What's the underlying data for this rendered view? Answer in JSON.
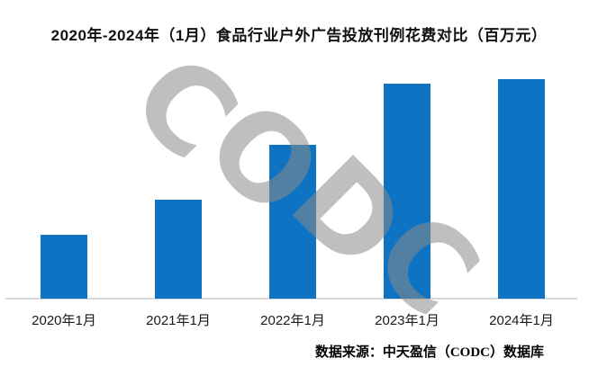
{
  "title": "2020年-2024年（1月）食品行业户外广告投放刊例花费对比（百万元）",
  "source_note": "数据来源：中天盈信（CODC）数据库",
  "watermark": {
    "text": "CODC"
  },
  "colors": {
    "bar": "#0d73c2",
    "axis_line": "#d9d9d9",
    "watermark": "#8a8a8a",
    "label_text": "#1a1a1a"
  },
  "chart_data": {
    "type": "bar",
    "title": "2020年-2024年（1月）食品行业户外广告投放刊例花费对比（百万元）",
    "categories": [
      "2020年1月",
      "2021年1月",
      "2022年1月",
      "2023年1月",
      "2024年1月"
    ],
    "values": [
      29,
      45,
      70,
      98,
      100
    ],
    "value_scale": "relative index, 2024年1月 = 100 (chart shows no numeric axis or data labels)",
    "unit": "百万元",
    "xlabel": "",
    "ylabel": "",
    "ylim": [
      0,
      105
    ],
    "grid": false,
    "legend": false,
    "y_axis_visible": false,
    "data_labels_visible": false,
    "bar_color": "#0d73c2"
  }
}
